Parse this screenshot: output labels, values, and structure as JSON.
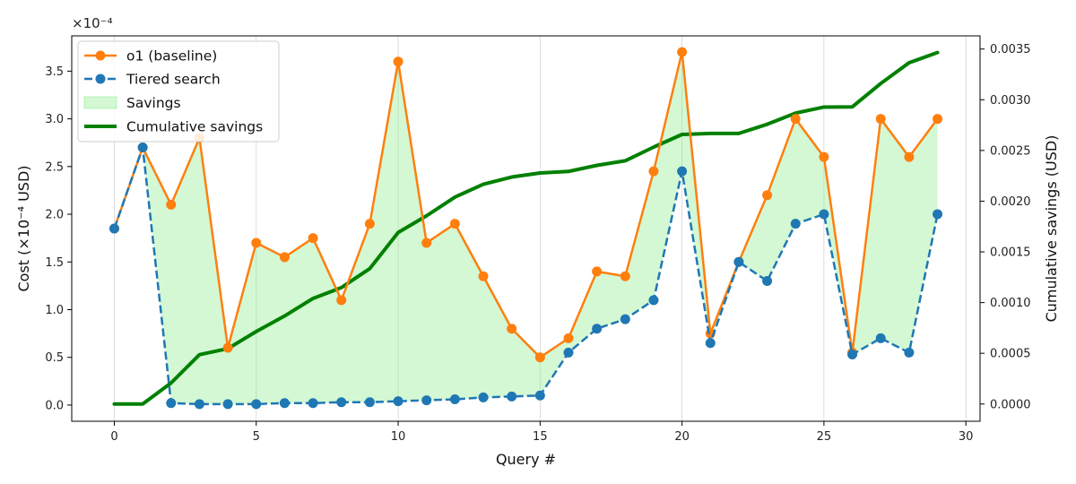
{
  "chart_data": {
    "type": "line",
    "x": [
      0,
      1,
      2,
      3,
      4,
      5,
      6,
      7,
      8,
      9,
      10,
      11,
      12,
      13,
      14,
      15,
      16,
      17,
      18,
      19,
      20,
      21,
      22,
      23,
      24,
      25,
      26,
      27,
      28,
      29
    ],
    "xlabel": "Query #",
    "ylabel": "Cost (×10⁻⁴ USD)",
    "y2label": "Cumulative savings (USD)",
    "offset_text": "×10⁻⁴",
    "xlim": [
      -1.5,
      30.5
    ],
    "ylim": [
      -0.17,
      3.87
    ],
    "y2lim": [
      -0.00017,
      0.00363
    ],
    "xticks": [
      0,
      5,
      10,
      15,
      20,
      25,
      30
    ],
    "yticks": [
      "0.0",
      "0.5",
      "1.0",
      "1.5",
      "2.0",
      "2.5",
      "3.0",
      "3.5"
    ],
    "y2ticks": [
      "0.0000",
      "0.0005",
      "0.0010",
      "0.0015",
      "0.0020",
      "0.0025",
      "0.0030",
      "0.0035"
    ],
    "grid": "vertical-x",
    "legend_position": "top-left",
    "series": [
      {
        "name": "o1 (baseline)",
        "axis": "left",
        "style": "solid-marker",
        "color": "#ff7f0e",
        "values": [
          1.85,
          2.7,
          2.1,
          2.8,
          0.6,
          1.7,
          1.55,
          1.75,
          1.1,
          1.9,
          3.6,
          1.7,
          1.9,
          1.35,
          0.8,
          0.5,
          0.7,
          1.4,
          1.35,
          2.45,
          3.7,
          0.75,
          1.5,
          2.2,
          3.0,
          2.6,
          0.55,
          3.0,
          2.6,
          3.0
        ]
      },
      {
        "name": "Tiered search",
        "axis": "left",
        "style": "dashed-marker",
        "color": "#1f77b4",
        "values": [
          1.85,
          2.7,
          0.02,
          0.01,
          0.01,
          0.01,
          0.02,
          0.02,
          0.03,
          0.03,
          0.04,
          0.05,
          0.06,
          0.08,
          0.09,
          0.1,
          0.55,
          0.8,
          0.9,
          1.1,
          2.45,
          0.65,
          1.5,
          1.3,
          1.9,
          2.0,
          0.53,
          0.7,
          0.55,
          2.0
        ]
      },
      {
        "name": "Savings",
        "axis": "left",
        "style": "fill-between",
        "color": "#90ee90"
      },
      {
        "name": "Cumulative savings",
        "axis": "right",
        "style": "solid-thick",
        "color": "#008000",
        "values": [
          0.0,
          0.0,
          0.000208,
          0.000487,
          0.000546,
          0.000715,
          0.000868,
          0.001041,
          0.001148,
          0.001335,
          0.001691,
          0.001856,
          0.00204,
          0.002167,
          0.002238,
          0.002278,
          0.002293,
          0.002353,
          0.002398,
          0.002533,
          0.002658,
          0.002668,
          0.002668,
          0.002758,
          0.002868,
          0.002928,
          0.00293,
          0.00316,
          0.003365,
          0.003465
        ]
      }
    ]
  }
}
